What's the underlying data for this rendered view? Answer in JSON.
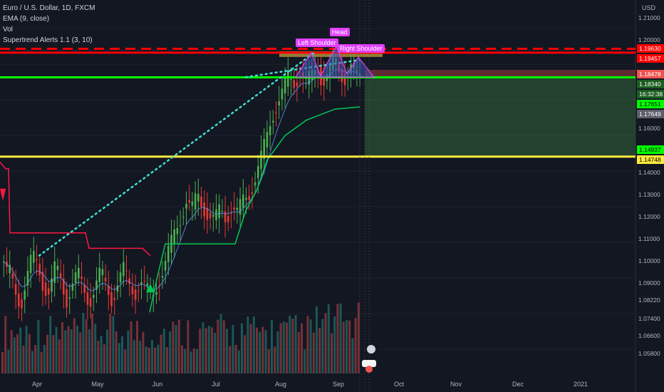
{
  "legend": {
    "symbol": "Euro / U.S. Dollar, 1D, FXCM",
    "ema": "EMA (9, close)",
    "vol": "Vol",
    "supertrend": "Supertrend Alerts 1.1 (3, 10)"
  },
  "colors": {
    "background": "#131722",
    "up": "#26a69a",
    "down": "#ef5350",
    "up_candle": "#4caf50",
    "down_candle": "#e53935",
    "resistance": "#ff0000",
    "support": "#00ff00",
    "target": "#ffeb3b",
    "trendline": "#40e0d0",
    "pattern": "#e040fb",
    "supertrend_up": "#00c853",
    "supertrend_down": "#ff1744"
  },
  "chart_data": {
    "type": "candlestick",
    "title": "Euro / U.S. Dollar, 1D, FXCM",
    "ylabel": "USD",
    "ylim": [
      1.0525,
      1.2125
    ],
    "x_ticks": [
      "Apr",
      "May",
      "Jun",
      "Jul",
      "Aug",
      "Sep",
      "Oct",
      "Nov",
      "Dec",
      "2021"
    ],
    "y_ticks": [
      "1.21000",
      "1.20000",
      "1.16000",
      "1.14000",
      "1.13000",
      "1.12000",
      "1.11000",
      "1.10000",
      "1.09000",
      "1.08220",
      "1.07400",
      "1.06600",
      "1.05800"
    ],
    "price_labels": [
      {
        "value": "1.19630",
        "color": "#ff0000",
        "text_color": "#ffffff"
      },
      {
        "value": "1.19457",
        "color": "#ff0000",
        "text_color": "#ffffff"
      },
      {
        "value": "1.18478",
        "color": "#ef5350",
        "text_color": "#ffffff"
      },
      {
        "value": "1.18340",
        "color": "#1b5e20",
        "text_color": "#ffffff"
      },
      {
        "value": "16:32:38",
        "color": "#1b5e20",
        "text_color": "#ffffff"
      },
      {
        "value": "1.17651",
        "color": "#00ff00",
        "text_color": "#000000"
      },
      {
        "value": "1.17649",
        "color": "#5d606b",
        "text_color": "#ffffff"
      },
      {
        "value": "1.14937",
        "color": "#00ff00",
        "text_color": "#000000"
      },
      {
        "value": "1.14748",
        "color": "#ffeb3b",
        "text_color": "#000000"
      }
    ],
    "horizontal_lines": [
      {
        "name": "resistance-dashed",
        "value": 1.1963,
        "color": "#ff0000",
        "style": "dashed"
      },
      {
        "name": "resistance",
        "value": 1.19457,
        "color": "#ff0000",
        "style": "solid"
      },
      {
        "name": "neckline-support",
        "value": 1.1834,
        "color": "#00ff00",
        "style": "solid"
      },
      {
        "name": "target",
        "value": 1.14748,
        "color": "#ffeb3b",
        "style": "solid"
      }
    ],
    "pattern_labels": [
      "Left Shoulder",
      "Head",
      "Right Shoulder"
    ],
    "series": [
      {
        "name": "EURUSD",
        "ohlc_path": [
          [
            1.1,
            1.09
          ],
          [
            1.095,
            1.086
          ],
          [
            1.086,
            1.081
          ],
          [
            1.081,
            1.093
          ],
          [
            1.093,
            1.102
          ],
          [
            1.102,
            1.098
          ],
          [
            1.098,
            1.089
          ],
          [
            1.089,
            1.086
          ],
          [
            1.086,
            1.097
          ],
          [
            1.097,
            1.092
          ],
          [
            1.092,
            1.083
          ],
          [
            1.083,
            1.09
          ],
          [
            1.09,
            1.094
          ],
          [
            1.094,
            1.087
          ],
          [
            1.087,
            1.082
          ],
          [
            1.082,
            1.089
          ],
          [
            1.089,
            1.095
          ],
          [
            1.095,
            1.088
          ],
          [
            1.088,
            1.083
          ],
          [
            1.083,
            1.091
          ],
          [
            1.091,
            1.096
          ],
          [
            1.096,
            1.089
          ],
          [
            1.089,
            1.086
          ],
          [
            1.086,
            1.092
          ],
          [
            1.092,
            1.087
          ],
          [
            1.087,
            1.083
          ],
          [
            1.083,
            1.091
          ],
          [
            1.091,
            1.097
          ],
          [
            1.097,
            1.105
          ],
          [
            1.105,
            1.113
          ],
          [
            1.113,
            1.12
          ],
          [
            1.12,
            1.128
          ],
          [
            1.128,
            1.123
          ],
          [
            1.123,
            1.13
          ],
          [
            1.13,
            1.125
          ],
          [
            1.125,
            1.121
          ],
          [
            1.121,
            1.118
          ],
          [
            1.118,
            1.124
          ],
          [
            1.124,
            1.12
          ],
          [
            1.12,
            1.125
          ],
          [
            1.125,
            1.121
          ],
          [
            1.121,
            1.128
          ],
          [
            1.128,
            1.131
          ],
          [
            1.131,
            1.137
          ],
          [
            1.137,
            1.145
          ],
          [
            1.145,
            1.155
          ],
          [
            1.155,
            1.166
          ],
          [
            1.166,
            1.172
          ],
          [
            1.172,
            1.177
          ],
          [
            1.177,
            1.183
          ],
          [
            1.183,
            1.181
          ],
          [
            1.181,
            1.186
          ],
          [
            1.186,
            1.18
          ],
          [
            1.18,
            1.184
          ],
          [
            1.184,
            1.189
          ],
          [
            1.189,
            1.181
          ],
          [
            1.181,
            1.185
          ],
          [
            1.185,
            1.192
          ],
          [
            1.192,
            1.186
          ],
          [
            1.186,
            1.183
          ],
          [
            1.183,
            1.188
          ],
          [
            1.188,
            1.183
          ],
          [
            1.183,
            1.185
          ]
        ]
      }
    ]
  }
}
